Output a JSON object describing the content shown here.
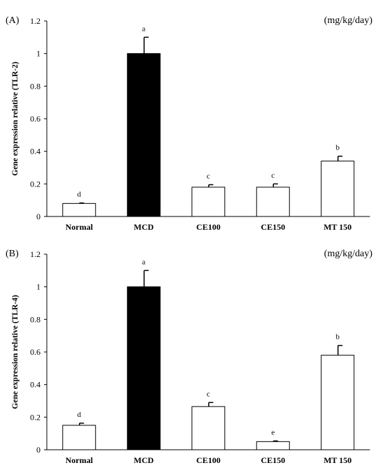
{
  "chart_data": [
    {
      "type": "bar",
      "panel_label": "(A)",
      "units": "(mg/kg/day)",
      "ylabel": "Gene expression relative  (TLR-2)",
      "xlabel": "",
      "categories": [
        "Normal",
        "MCD",
        "CE100",
        "CE150",
        "MT 150"
      ],
      "values": [
        0.08,
        1.0,
        0.18,
        0.18,
        0.34
      ],
      "errors": [
        0.003,
        0.1,
        0.015,
        0.02,
        0.03
      ],
      "significance": [
        "d",
        "a",
        "c",
        "c",
        "b"
      ],
      "bar_fill": [
        "#ffffff",
        "#000000",
        "#ffffff",
        "#ffffff",
        "#ffffff"
      ],
      "ylim": [
        0,
        1.2
      ],
      "yticks": [
        "0",
        "0.2",
        "0.4",
        "0.6",
        "0.8",
        "1",
        "1.2"
      ],
      "grid": false
    },
    {
      "type": "bar",
      "panel_label": "(B)",
      "units": "(mg/kg/day)",
      "ylabel": "Gene expression relative  (TLR-4)",
      "xlabel": "",
      "categories": [
        "Normal",
        "MCD",
        "CE100",
        "CE150",
        "MT 150"
      ],
      "values": [
        0.15,
        1.0,
        0.265,
        0.05,
        0.58
      ],
      "errors": [
        0.013,
        0.1,
        0.025,
        0.004,
        0.06
      ],
      "significance": [
        "d",
        "a",
        "c",
        "e",
        "b"
      ],
      "bar_fill": [
        "#ffffff",
        "#000000",
        "#ffffff",
        "#ffffff",
        "#ffffff"
      ],
      "ylim": [
        0,
        1.2
      ],
      "yticks": [
        "0",
        "0.2",
        "0.4",
        "0.6",
        "0.8",
        "1",
        "1.2"
      ],
      "grid": false
    }
  ]
}
